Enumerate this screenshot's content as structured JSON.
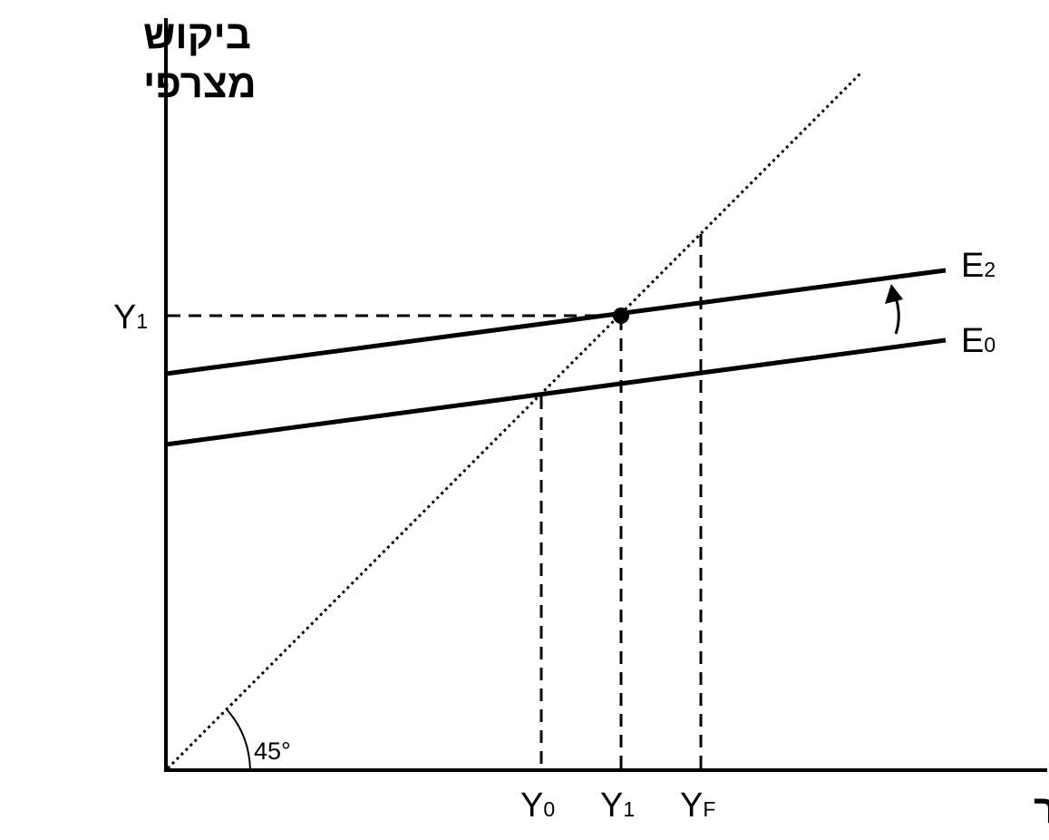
{
  "diagram": {
    "y_axis_title_line1": "ביקוש",
    "y_axis_title_line2": "מצרפי",
    "x_axis_title": "תוצר",
    "angle_label": "45°",
    "y_tick": {
      "main": "Y",
      "sub": "1"
    },
    "x_ticks": [
      {
        "main": "Y",
        "sub": "0"
      },
      {
        "main": "Y",
        "sub": "1"
      },
      {
        "main": "Y",
        "sub": "F"
      }
    ],
    "curves": [
      {
        "main": "E",
        "sub": "2"
      },
      {
        "main": "E",
        "sub": "0"
      }
    ],
    "colors": {
      "line": "#000000",
      "background": "#ffffff"
    }
  }
}
